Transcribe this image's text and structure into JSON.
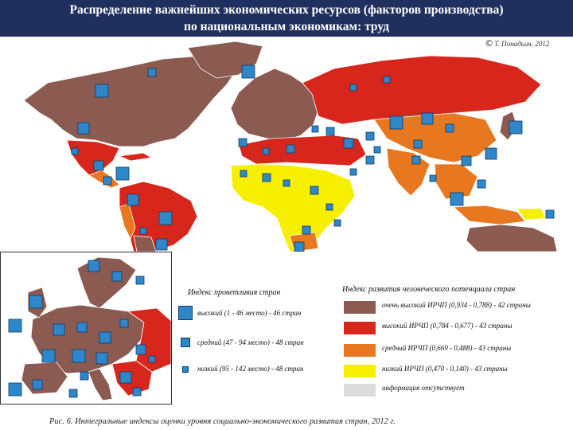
{
  "title": {
    "line1": "Распределение важнейших экономических ресурсов (факторов производства)",
    "line2": "по национальным экономикам: труд"
  },
  "copyright": {
    "symbol": "©",
    "text": "Т. Понадьин, 2012"
  },
  "colors": {
    "very_high": "#8b5a50",
    "high": "#d7261c",
    "medium": "#e8781f",
    "low": "#f7ef00",
    "no_data": "#dcdcdc",
    "square_fill": "#2f86c8",
    "ocean": "#ffffff"
  },
  "legend_left": {
    "title": "Индекс проветливия стран",
    "items": [
      {
        "label": "высокий (1 - 46 место) - 46 стран",
        "size": "large"
      },
      {
        "label": "средний (47 - 94 место) - 48 стран",
        "size": "medium"
      },
      {
        "label": "низкий (95 - 142 место) - 48 стран",
        "size": "small"
      }
    ]
  },
  "legend_right": {
    "title": "Индекс развития человеческого потенциала стран",
    "items": [
      {
        "label": "очень высокий ИРЧП (0,934 - 0,788) - 42 страны",
        "color_key": "very_high"
      },
      {
        "label": "высокий ИРЧП (0,784 - 0,677) - 43 страны",
        "color_key": "high"
      },
      {
        "label": "средний ИРЧП (0,669 - 0,488) - 43 страны",
        "color_key": "medium"
      },
      {
        "label": "низкий ИРЧП (0,470 - 0,140) - 43 страны",
        "color_key": "low"
      },
      {
        "label": "информация отсутствует",
        "color_key": "no_data"
      }
    ]
  },
  "caption": "Рис. 6. Интегральные индексы оценки уровня социально-экономического развития стран, 2012 г."
}
